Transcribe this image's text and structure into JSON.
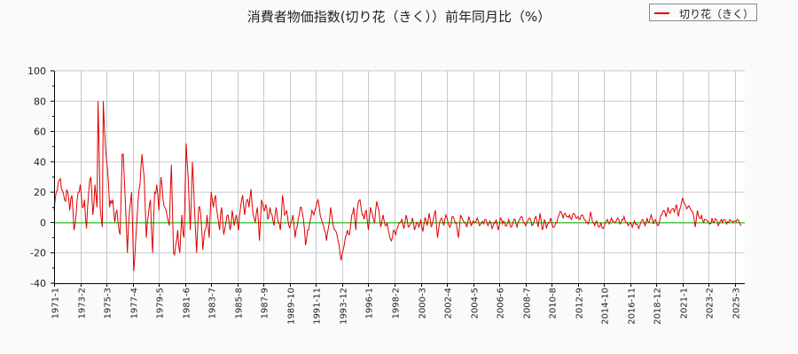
{
  "title": "消費者物価指数(切り花（きく））前年同月比（%）",
  "legend": {
    "label": "切り花（きく）",
    "color": "#e00000"
  },
  "colors": {
    "series": "#e00000",
    "zero_line": "#00cc00",
    "grid": "#c8c8c8",
    "axis": "#000000",
    "plot_bg": "#ffffff",
    "page_bg": "#fafafa"
  },
  "chart_data": {
    "type": "line",
    "title": "消費者物価指数(切り花（きく））前年同月比（%）",
    "xlabel": "",
    "ylabel": "",
    "ylim": [
      -40,
      100
    ],
    "yticks": [
      -40,
      -20,
      0,
      20,
      40,
      60,
      80,
      100
    ],
    "grid": true,
    "legend_position": "top-right",
    "x_tick_labels": [
      "1971-1",
      "1973-2",
      "1975-3",
      "1977-4",
      "1979-5",
      "1981-6",
      "1983-7",
      "1985-8",
      "1987-9",
      "1989-10",
      "1991-11",
      "1993-12",
      "1996-1",
      "1998-2",
      "2000-3",
      "2002-4",
      "2004-5",
      "2006-6",
      "2008-7",
      "2010-8",
      "2012-9",
      "2014-10",
      "2016-11",
      "2018-12",
      "2021-1",
      "2023-2",
      "2025-3"
    ],
    "x_start": "1971-1",
    "x_end": "2025-9",
    "series": [
      {
        "name": "切り花（きく）",
        "note": "monthly YoY %, approximate keypoints read from chart (month index from 1971-1: value)",
        "keypoints": [
          [
            0,
            8
          ],
          [
            2,
            20
          ],
          [
            5,
            28
          ],
          [
            7,
            22
          ],
          [
            10,
            15
          ],
          [
            13,
            20
          ],
          [
            15,
            8
          ],
          [
            17,
            18
          ],
          [
            19,
            -5
          ],
          [
            21,
            5
          ],
          [
            23,
            20
          ],
          [
            25,
            25
          ],
          [
            27,
            10
          ],
          [
            29,
            15
          ],
          [
            31,
            -4
          ],
          [
            33,
            20
          ],
          [
            35,
            30
          ],
          [
            37,
            5
          ],
          [
            39,
            25
          ],
          [
            41,
            10
          ],
          [
            42,
            80
          ],
          [
            44,
            10
          ],
          [
            46,
            -3
          ],
          [
            47,
            80
          ],
          [
            49,
            50
          ],
          [
            51,
            35
          ],
          [
            53,
            10
          ],
          [
            56,
            15
          ],
          [
            58,
            0
          ],
          [
            60,
            8
          ],
          [
            63,
            -8
          ],
          [
            65,
            45
          ],
          [
            66,
            45
          ],
          [
            68,
            15
          ],
          [
            70,
            -20
          ],
          [
            72,
            8
          ],
          [
            74,
            20
          ],
          [
            76,
            -32
          ],
          [
            78,
            -10
          ],
          [
            80,
            12
          ],
          [
            82,
            25
          ],
          [
            84,
            45
          ],
          [
            86,
            30
          ],
          [
            88,
            -10
          ],
          [
            90,
            5
          ],
          [
            92,
            15
          ],
          [
            94,
            -20
          ],
          [
            96,
            20
          ],
          [
            98,
            25
          ],
          [
            100,
            8
          ],
          [
            102,
            30
          ],
          [
            104,
            15
          ],
          [
            107,
            8
          ],
          [
            110,
            -2
          ],
          [
            112,
            38
          ],
          [
            114,
            -20
          ],
          [
            116,
            -15
          ],
          [
            118,
            -5
          ],
          [
            120,
            -20
          ],
          [
            122,
            5
          ],
          [
            124,
            -10
          ],
          [
            126,
            52
          ],
          [
            128,
            30
          ],
          [
            130,
            -5
          ],
          [
            132,
            40
          ],
          [
            134,
            10
          ],
          [
            136,
            -20
          ],
          [
            138,
            10
          ],
          [
            140,
            5
          ],
          [
            142,
            -18
          ],
          [
            144,
            -5
          ],
          [
            146,
            5
          ],
          [
            148,
            -10
          ],
          [
            150,
            20
          ],
          [
            152,
            10
          ],
          [
            154,
            18
          ],
          [
            156,
            5
          ],
          [
            158,
            -5
          ],
          [
            160,
            10
          ],
          [
            162,
            -8
          ],
          [
            164,
            0
          ],
          [
            166,
            5
          ],
          [
            168,
            -5
          ],
          [
            170,
            8
          ],
          [
            172,
            -2
          ],
          [
            174,
            5
          ],
          [
            176,
            -5
          ],
          [
            178,
            10
          ],
          [
            180,
            18
          ],
          [
            182,
            5
          ],
          [
            184,
            15
          ],
          [
            186,
            10
          ],
          [
            188,
            22
          ],
          [
            190,
            5
          ],
          [
            192,
            0
          ],
          [
            194,
            10
          ],
          [
            196,
            -12
          ],
          [
            198,
            15
          ],
          [
            200,
            8
          ],
          [
            202,
            12
          ],
          [
            204,
            2
          ],
          [
            206,
            10
          ],
          [
            208,
            5
          ],
          [
            210,
            -2
          ],
          [
            212,
            10
          ],
          [
            214,
            0
          ],
          [
            216,
            -5
          ],
          [
            218,
            18
          ],
          [
            220,
            5
          ],
          [
            222,
            8
          ],
          [
            224,
            -2
          ],
          [
            226,
            0
          ],
          [
            228,
            5
          ],
          [
            230,
            -10
          ],
          [
            232,
            -3
          ],
          [
            234,
            5
          ],
          [
            236,
            10
          ],
          [
            238,
            2
          ],
          [
            240,
            -15
          ],
          [
            242,
            -5
          ],
          [
            244,
            0
          ],
          [
            246,
            8
          ],
          [
            248,
            5
          ],
          [
            250,
            10
          ],
          [
            252,
            15
          ],
          [
            254,
            5
          ],
          [
            256,
            0
          ],
          [
            258,
            -5
          ],
          [
            260,
            -12
          ],
          [
            262,
            -3
          ],
          [
            264,
            10
          ],
          [
            266,
            0
          ],
          [
            268,
            -5
          ],
          [
            270,
            -8
          ],
          [
            272,
            -15
          ],
          [
            274,
            -25
          ],
          [
            276,
            -18
          ],
          [
            278,
            -10
          ],
          [
            280,
            -5
          ],
          [
            282,
            -8
          ],
          [
            284,
            5
          ],
          [
            286,
            10
          ],
          [
            288,
            -5
          ],
          [
            290,
            12
          ],
          [
            292,
            15
          ],
          [
            294,
            5
          ],
          [
            296,
            2
          ],
          [
            298,
            8
          ],
          [
            300,
            -5
          ],
          [
            302,
            10
          ],
          [
            304,
            5
          ],
          [
            306,
            0
          ],
          [
            308,
            14
          ],
          [
            310,
            8
          ],
          [
            312,
            -3
          ],
          [
            314,
            5
          ],
          [
            316,
            -2
          ],
          [
            318,
            0
          ],
          [
            320,
            -8
          ],
          [
            322,
            -12
          ],
          [
            324,
            -5
          ],
          [
            326,
            -8
          ],
          [
            328,
            -3
          ],
          [
            330,
            0
          ],
          [
            332,
            2
          ],
          [
            334,
            -4
          ],
          [
            336,
            5
          ],
          [
            338,
            -3
          ],
          [
            340,
            -1
          ],
          [
            342,
            3
          ],
          [
            344,
            -5
          ],
          [
            346,
            0
          ],
          [
            348,
            -3
          ],
          [
            350,
            2
          ],
          [
            352,
            -6
          ],
          [
            354,
            3
          ],
          [
            356,
            -2
          ],
          [
            358,
            6
          ],
          [
            360,
            -3
          ],
          [
            362,
            2
          ],
          [
            364,
            8
          ],
          [
            366,
            -10
          ],
          [
            368,
            0
          ],
          [
            370,
            3
          ],
          [
            372,
            -2
          ],
          [
            374,
            5
          ],
          [
            376,
            0
          ],
          [
            378,
            -3
          ],
          [
            380,
            4
          ],
          [
            382,
            2
          ],
          [
            384,
            0
          ],
          [
            386,
            -10
          ],
          [
            388,
            5
          ],
          [
            390,
            2
          ],
          [
            392,
            0
          ],
          [
            394,
            -3
          ],
          [
            396,
            4
          ],
          [
            398,
            -2
          ],
          [
            400,
            1
          ],
          [
            402,
            0
          ],
          [
            404,
            3
          ],
          [
            406,
            -2
          ],
          [
            408,
            0
          ],
          [
            410,
            -1
          ],
          [
            412,
            2
          ],
          [
            414,
            -2
          ],
          [
            416,
            1
          ],
          [
            418,
            -4
          ],
          [
            420,
            0
          ],
          [
            422,
            2
          ],
          [
            424,
            -5
          ],
          [
            426,
            3
          ],
          [
            428,
            -1
          ],
          [
            430,
            0
          ],
          [
            432,
            -2
          ],
          [
            434,
            2
          ],
          [
            436,
            -3
          ],
          [
            438,
            0
          ],
          [
            440,
            2
          ],
          [
            442,
            -3
          ],
          [
            444,
            1
          ],
          [
            446,
            4
          ],
          [
            448,
            0
          ],
          [
            450,
            -2
          ],
          [
            452,
            1
          ],
          [
            454,
            3
          ],
          [
            456,
            -2
          ],
          [
            458,
            0
          ],
          [
            460,
            4
          ],
          [
            462,
            -3
          ],
          [
            464,
            6
          ],
          [
            466,
            -5
          ],
          [
            468,
            2
          ],
          [
            470,
            -4
          ],
          [
            472,
            0
          ],
          [
            474,
            3
          ],
          [
            476,
            -3
          ],
          [
            478,
            -2
          ],
          [
            480,
            0
          ],
          [
            482,
            5
          ],
          [
            484,
            7
          ],
          [
            486,
            3
          ],
          [
            488,
            6
          ],
          [
            490,
            4
          ],
          [
            492,
            5
          ],
          [
            494,
            2
          ],
          [
            496,
            6
          ],
          [
            498,
            3
          ],
          [
            500,
            4
          ],
          [
            502,
            2
          ],
          [
            504,
            5
          ],
          [
            506,
            2
          ],
          [
            508,
            0
          ],
          [
            510,
            -1
          ],
          [
            512,
            7
          ],
          [
            514,
            0
          ],
          [
            516,
            -2
          ],
          [
            518,
            1
          ],
          [
            520,
            -3
          ],
          [
            522,
            0
          ],
          [
            524,
            -4
          ],
          [
            526,
            0
          ],
          [
            528,
            2
          ],
          [
            530,
            -1
          ],
          [
            532,
            3
          ],
          [
            534,
            1
          ],
          [
            536,
            0
          ],
          [
            538,
            3
          ],
          [
            540,
            -1
          ],
          [
            542,
            2
          ],
          [
            544,
            4
          ],
          [
            546,
            0
          ],
          [
            548,
            -2
          ],
          [
            550,
            0
          ],
          [
            552,
            -3
          ],
          [
            554,
            1
          ],
          [
            556,
            -1
          ],
          [
            558,
            -4
          ],
          [
            560,
            0
          ],
          [
            562,
            2
          ],
          [
            564,
            -2
          ],
          [
            566,
            3
          ],
          [
            568,
            0
          ],
          [
            570,
            5
          ],
          [
            572,
            -1
          ],
          [
            574,
            2
          ],
          [
            576,
            -2
          ],
          [
            578,
            1
          ],
          [
            580,
            5
          ],
          [
            582,
            8
          ],
          [
            584,
            4
          ],
          [
            586,
            10
          ],
          [
            588,
            6
          ],
          [
            590,
            9
          ],
          [
            592,
            7
          ],
          [
            594,
            12
          ],
          [
            596,
            4
          ],
          [
            598,
            10
          ],
          [
            600,
            16
          ],
          [
            602,
            12
          ],
          [
            604,
            9
          ],
          [
            606,
            11
          ],
          [
            608,
            8
          ],
          [
            610,
            6
          ],
          [
            612,
            -3
          ],
          [
            614,
            8
          ],
          [
            616,
            3
          ],
          [
            618,
            5
          ],
          [
            620,
            0
          ],
          [
            622,
            2
          ],
          [
            624,
            1
          ],
          [
            626,
            -1
          ],
          [
            628,
            3
          ],
          [
            630,
            0
          ],
          [
            632,
            2
          ],
          [
            634,
            -2
          ],
          [
            636,
            1
          ],
          [
            638,
            0
          ],
          [
            640,
            2
          ],
          [
            642,
            -1
          ],
          [
            644,
            0
          ],
          [
            646,
            1
          ],
          [
            648,
            0
          ],
          [
            650,
            1
          ],
          [
            652,
            2
          ],
          [
            654,
            0
          ],
          [
            656,
            -2
          ]
        ]
      }
    ]
  },
  "axes": {
    "y_labels": [
      "100",
      "80",
      "60",
      "40",
      "20",
      "0",
      "-20",
      "-40"
    ]
  }
}
